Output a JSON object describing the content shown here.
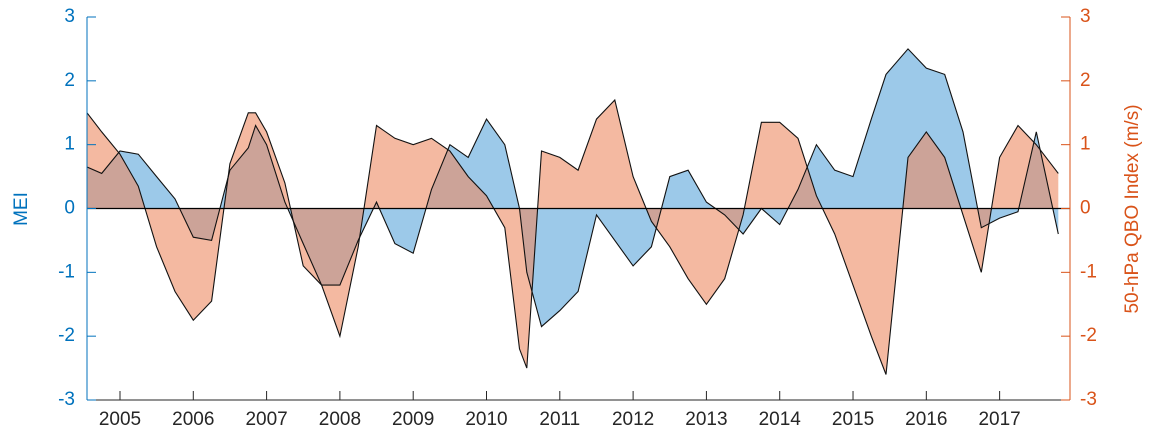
{
  "chart_data": {
    "type": "area",
    "y_label": "MEI",
    "y2_label": "50-hPa QBO Index (m/s)",
    "x": [
      2004.55,
      2004.75,
      2005,
      2005.25,
      2005.5,
      2005.75,
      2006,
      2006.25,
      2006.5,
      2006.75,
      2006.85,
      2007,
      2007.25,
      2007.5,
      2007.75,
      2008,
      2008.25,
      2008.5,
      2008.75,
      2009,
      2009.25,
      2009.5,
      2009.75,
      2010,
      2010.25,
      2010.45,
      2010.55,
      2010.75,
      2011,
      2011.25,
      2011.5,
      2011.75,
      2012,
      2012.25,
      2012.5,
      2012.75,
      2013,
      2013.25,
      2013.5,
      2013.75,
      2014,
      2014.25,
      2014.5,
      2014.75,
      2015,
      2015.25,
      2015.45,
      2015.75,
      2016,
      2016.25,
      2016.5,
      2016.75,
      2017,
      2017.25,
      2017.5,
      2017.8
    ],
    "series": [
      {
        "name": "MEI",
        "color": "#5aa5db",
        "axis": "y",
        "values": [
          0.65,
          0.55,
          0.9,
          0.85,
          0.5,
          0.15,
          -0.45,
          -0.5,
          0.6,
          0.95,
          1.3,
          1.0,
          0.1,
          -0.55,
          -1.2,
          -1.2,
          -0.5,
          0.1,
          -0.55,
          -0.7,
          0.3,
          1.0,
          0.8,
          1.4,
          1.0,
          0.0,
          -1.0,
          -1.85,
          -1.6,
          -1.3,
          -0.1,
          -0.5,
          -0.9,
          -0.6,
          0.5,
          0.6,
          0.1,
          -0.1,
          -0.4,
          0.0,
          -0.25,
          0.3,
          1.0,
          0.6,
          0.5,
          1.4,
          2.1,
          2.5,
          2.2,
          2.1,
          1.2,
          -0.3,
          -0.15,
          -0.05,
          1.2,
          -0.4
        ]
      },
      {
        "name": "QBO",
        "color": "#ec8a62",
        "axis": "y2",
        "values": [
          1.5,
          1.2,
          0.85,
          0.35,
          -0.6,
          -1.3,
          -1.75,
          -1.45,
          0.7,
          1.5,
          1.5,
          1.2,
          0.4,
          -0.9,
          -1.2,
          -2.0,
          -0.6,
          1.3,
          1.1,
          1.0,
          1.1,
          0.9,
          0.5,
          0.2,
          -0.3,
          -2.2,
          -2.5,
          0.9,
          0.8,
          0.6,
          1.4,
          1.7,
          0.5,
          -0.2,
          -0.6,
          -1.1,
          -1.5,
          -1.1,
          -0.1,
          1.35,
          1.35,
          1.1,
          0.2,
          -0.4,
          -1.2,
          -2.0,
          -2.6,
          0.8,
          1.2,
          0.8,
          -0.1,
          -1.0,
          0.8,
          1.3,
          1.0,
          0.55
        ]
      }
    ],
    "xlim": [
      2004.55,
      2017.96
    ],
    "xticks": [
      2005,
      2006,
      2007,
      2008,
      2009,
      2010,
      2011,
      2012,
      2013,
      2014,
      2015,
      2016,
      2017
    ],
    "ylim": [
      -3,
      3
    ],
    "yticks": [
      -3,
      -2,
      -1,
      0,
      1,
      2,
      3
    ],
    "y_color": "#0072bd",
    "y2lim": [
      -3,
      3
    ],
    "y2ticks": [
      -3,
      -2,
      -1,
      0,
      1,
      2,
      3
    ],
    "y2_color": "#d95319"
  }
}
